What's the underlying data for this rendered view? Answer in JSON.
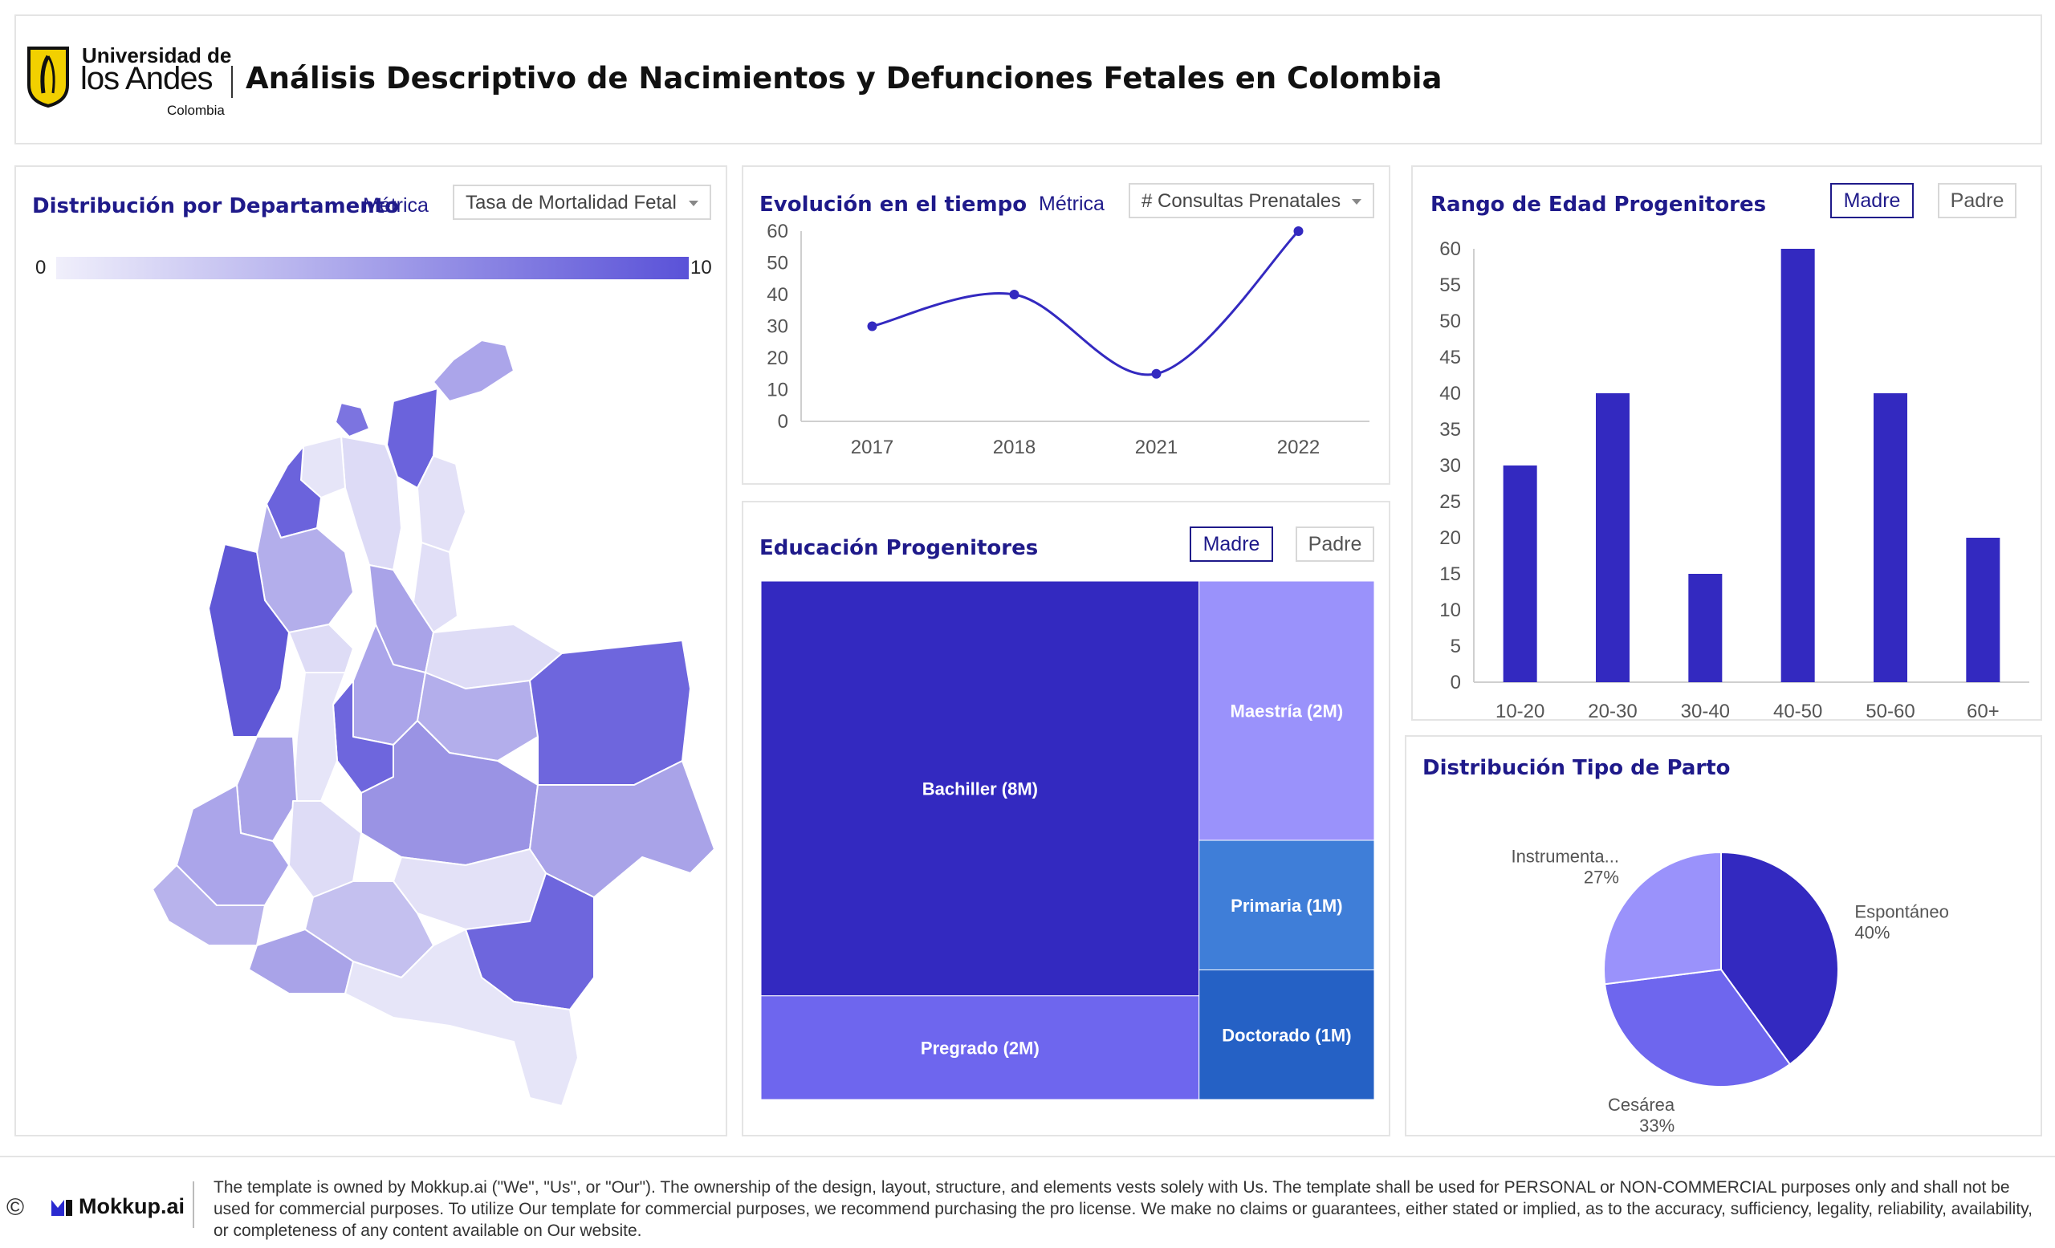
{
  "header": {
    "logo_line1": "Universidad de",
    "logo_line2": "los Andes",
    "logo_line3": "Colombia",
    "title": "Análisis Descriptivo de Nacimientos y Defunciones Fetales en Colombia"
  },
  "map_panel": {
    "title": "Distribución por Departamento",
    "metric_label": "Métrica",
    "metric_value": "Tasa de Mortalidad Fetal",
    "legend_min": "0",
    "legend_max": "10"
  },
  "time_panel": {
    "title": "Evolución en el tiempo",
    "metric_label": "Métrica",
    "metric_value": "# Consultas Prenatales"
  },
  "education_panel": {
    "title": "Educación Progenitores",
    "toggle_madre": "Madre",
    "toggle_padre": "Padre"
  },
  "age_panel": {
    "title": "Rango de Edad Progenitores",
    "toggle_madre": "Madre",
    "toggle_padre": "Padre"
  },
  "birth_panel": {
    "title": "Distribución Tipo de Parto"
  },
  "colors": {
    "primary": "#3329c0",
    "accent": "#6e66ee",
    "light": "#9a92fb",
    "blue1": "#3f7ed8",
    "blue2": "#2561c5",
    "title": "#1f1a8a"
  },
  "chart_data": [
    {
      "id": "line",
      "type": "line",
      "x": [
        "2017",
        "2018",
        "2021",
        "2022"
      ],
      "values": [
        30,
        40,
        15,
        60
      ],
      "ylim": [
        0,
        60
      ],
      "yticks": [
        0,
        10,
        20,
        30,
        40,
        50,
        60
      ]
    },
    {
      "id": "bar",
      "type": "bar",
      "categories": [
        "10-20",
        "20-30",
        "30-40",
        "40-50",
        "50-60",
        "60+"
      ],
      "values": [
        30,
        40,
        15,
        60,
        40,
        20
      ],
      "ylim": [
        0,
        60
      ],
      "yticks": [
        0,
        5,
        10,
        15,
        20,
        25,
        30,
        35,
        40,
        45,
        50,
        55,
        60
      ]
    },
    {
      "id": "treemap",
      "type": "treemap",
      "items": [
        {
          "label": "Bachiller (8M)",
          "value": 8,
          "color": "#3329c0"
        },
        {
          "label": "Pregrado (2M)",
          "value": 2,
          "color": "#6e66ee"
        },
        {
          "label": "Maestría (2M)",
          "value": 2,
          "color": "#9a92fb"
        },
        {
          "label": "Primaria (1M)",
          "value": 1,
          "color": "#3f7ed8"
        },
        {
          "label": "Doctorado (1M)",
          "value": 1,
          "color": "#2561c5"
        }
      ]
    },
    {
      "id": "pie",
      "type": "pie",
      "slices": [
        {
          "label": "Espontáneo",
          "pct_label": "40%",
          "value": 40,
          "color": "#3329c0"
        },
        {
          "label": "Cesárea",
          "pct_label": "33%",
          "value": 33,
          "color": "#6e66ee"
        },
        {
          "label": "Instrumenta...",
          "pct_label": "27%",
          "value": 27,
          "color": "#9a92fb"
        }
      ]
    }
  ],
  "footer": {
    "copyright_symbol": "©",
    "brand": "Mokkup.ai",
    "notice": "The template is owned by Mokkup.ai (\"We\", \"Us\", or \"Our\"). The ownership of the design, layout, structure, and elements vests solely with Us. The template shall be used for PERSONAL or NON-COMMERCIAL purposes only and shall not be used for commercial purposes. To utilize Our template for commercial purposes, we recommend purchasing the pro license. We make no claims or guarantees, either stated or implied, as to the accuracy, sufficiency, legality, reliability, availability, or completeness of any content available on Our website."
  }
}
